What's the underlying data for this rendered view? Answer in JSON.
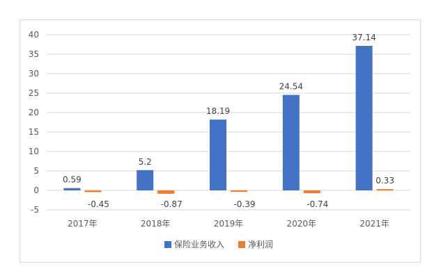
{
  "chart_data": {
    "type": "bar",
    "categories": [
      "2017年",
      "2018年",
      "2019年",
      "2020年",
      "2021年"
    ],
    "series": [
      {
        "name": "保险业务收入",
        "values": [
          0.59,
          5.2,
          18.19,
          24.54,
          37.14
        ],
        "color": "#4472C4"
      },
      {
        "name": "净利润",
        "values": [
          -0.45,
          -0.87,
          -0.39,
          -0.74,
          0.33
        ],
        "color": "#ED7D31"
      }
    ],
    "data_labels": [
      [
        "0.59",
        "5.2",
        "18.19",
        "24.54",
        "37.14"
      ],
      [
        "-0.45",
        "-0.87",
        "-0.39",
        "-0.74",
        "0.33"
      ]
    ],
    "yticks": [
      "-5",
      "0",
      "5",
      "10",
      "15",
      "20",
      "25",
      "30",
      "35",
      "40"
    ],
    "ylim": [
      -5,
      40
    ],
    "grid": true,
    "legend_position": "bottom",
    "title": "",
    "xlabel": "",
    "ylabel": ""
  }
}
